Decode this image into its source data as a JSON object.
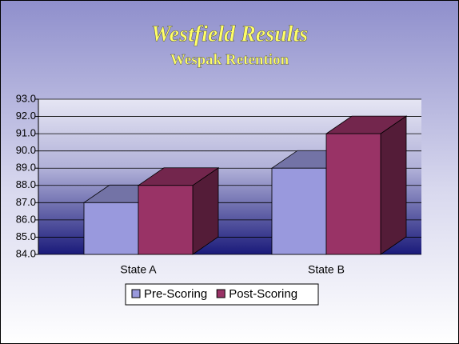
{
  "chart_data": {
    "type": "bar3d",
    "title": "Westfield Results",
    "subtitle": "Wespak Retention",
    "categories": [
      "State A",
      "State B"
    ],
    "series": [
      {
        "name": "Pre-Scoring",
        "color": "#9999dd",
        "values": [
          87,
          89
        ]
      },
      {
        "name": "Post-Scoring",
        "color": "#993366",
        "values": [
          88,
          91
        ]
      }
    ],
    "ylim": [
      84,
      93
    ],
    "yticks": [
      {
        "value": 84,
        "label": "84.0"
      },
      {
        "value": 85,
        "label": "85.0"
      },
      {
        "value": 86,
        "label": "86.0"
      },
      {
        "value": 87,
        "label": "87.0"
      },
      {
        "value": 88,
        "label": "88.0"
      },
      {
        "value": 89,
        "label": "89.0"
      },
      {
        "value": 90,
        "label": "90.0"
      },
      {
        "value": 91,
        "label": "91.0"
      },
      {
        "value": 92,
        "label": "92.0"
      },
      {
        "value": 93,
        "label": "93.0"
      }
    ],
    "grid": true,
    "legend": "bottom"
  }
}
